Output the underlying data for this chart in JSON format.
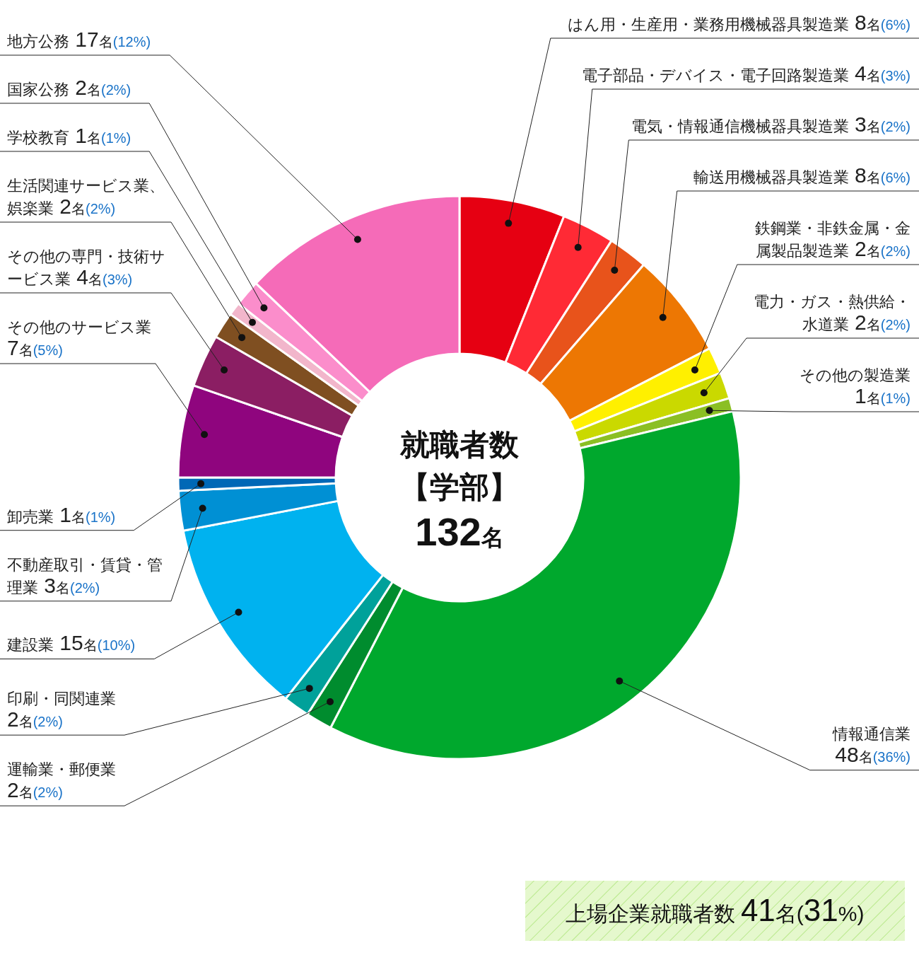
{
  "chart_data": {
    "type": "donut",
    "title": "就職者数",
    "subtitle": "【学部】",
    "categories": [
      "はん用・生産用・業務用機械器具製造業",
      "電子部品・デバイス・電子回路製造業",
      "電気・情報通信機械器具製造業",
      "輸送用機械器具製造業",
      "鉄鋼業・非鉄金属・金属製品製造業",
      "電力・ガス・熱供給・水道業",
      "その他の製造業",
      "情報通信業",
      "運輸業・郵便業",
      "印刷・同関連業",
      "建設業",
      "不動産取引・賃貸・管理業",
      "卸売業",
      "その他のサービス業",
      "その他の専門・技術サービス業",
      "生活関連サービス業、娯楽業",
      "学校教育",
      "国家公務",
      "地方公務"
    ],
    "values": [
      8,
      4,
      3,
      8,
      2,
      2,
      1,
      48,
      2,
      2,
      15,
      3,
      1,
      7,
      4,
      2,
      1,
      2,
      17
    ],
    "value_labels": [
      "8名(6%)",
      "4名(3%)",
      "3名(2%)",
      "8名(6%)",
      "2名(2%)",
      "2名(2%)",
      "1名(1%)",
      "48名(36%)",
      "2名(2%)",
      "2名(2%)",
      "15名(10%)",
      "3名(2%)",
      "1名(1%)",
      "7名(5%)",
      "4名(3%)",
      "2名(2%)",
      "1名(1%)",
      "2名(2%)",
      "17名(12%)"
    ],
    "colors": [
      "#e60012",
      "#ff2a35",
      "#e8531b",
      "#ed7703",
      "#fff000",
      "#cad900",
      "#8bbf24",
      "#00a82d",
      "#008c2e",
      "#00a19a",
      "#00b2ef",
      "#0090d4",
      "#0068b6",
      "#8f057e",
      "#8b1e63",
      "#7f4f21",
      "#f2b6cb",
      "#fb8dcb",
      "#f56bb8"
    ],
    "annotations": [
      "132名",
      "上場企業就職者数 41名(31%)"
    ]
  }
}
